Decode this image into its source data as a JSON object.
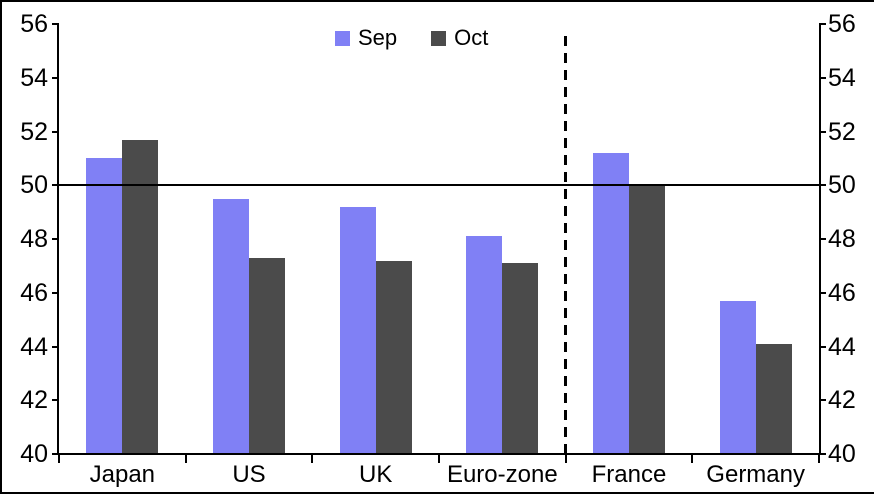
{
  "chart_data": {
    "type": "bar",
    "title": "",
    "categories": [
      "Japan",
      "US",
      "UK",
      "Euro-zone",
      "France",
      "Germany"
    ],
    "series": [
      {
        "name": "Sep",
        "color": "#8080F5",
        "values": [
          51.0,
          49.5,
          49.2,
          48.1,
          51.2,
          45.7
        ]
      },
      {
        "name": "Oct",
        "color": "#4B4B4B",
        "values": [
          51.7,
          47.3,
          47.2,
          47.1,
          50.0,
          44.1
        ]
      }
    ],
    "ylim": [
      40,
      56
    ],
    "yticks": [
      40,
      42,
      44,
      46,
      48,
      50,
      52,
      54,
      56
    ],
    "reference_line": 50,
    "divider_between": [
      "Euro-zone",
      "France"
    ],
    "legend_position": "top-center",
    "axes": {
      "left": true,
      "right": true
    },
    "grid": false,
    "axis_color": "#000000",
    "background_color": "#FFFFFF"
  }
}
